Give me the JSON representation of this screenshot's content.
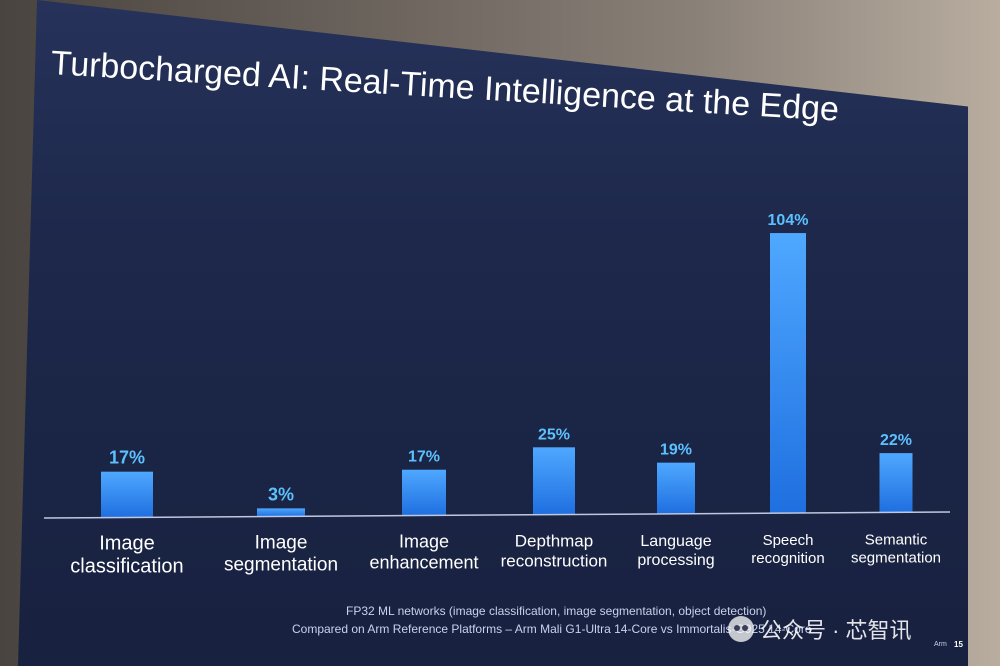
{
  "slide": {
    "title": "Turbocharged AI: Real-Time Intelligence at the Edge",
    "footnote_line1": "FP32 ML networks (image classification, image segmentation, object detection)",
    "footnote_line2": "Compared on Arm Reference Platforms – Arm Mali G1-Ultra 14-Core vs Immortalis-G925 14-Core",
    "brand": "Arm",
    "page_number": "15"
  },
  "watermark": {
    "text": "公众号 · 芯智讯",
    "icon": "wechat-icon"
  },
  "colors": {
    "background": "#1d284b",
    "bar_top": "#4fa8ff",
    "bar_bottom": "#1f6fe0",
    "value_label": "#5cc0ff",
    "category_label": "#ffffff",
    "baseline": "#c0c8e0"
  },
  "chart_data": {
    "type": "bar",
    "categories": [
      [
        "Image",
        "classification"
      ],
      [
        "Image",
        "segmentation"
      ],
      [
        "Image",
        "enhancement"
      ],
      [
        "Depthmap",
        "reconstruction"
      ],
      [
        "Language",
        "processing"
      ],
      [
        "Speech",
        "recognition"
      ],
      [
        "Semantic",
        "segmentation"
      ]
    ],
    "values": [
      17,
      3,
      17,
      25,
      19,
      104,
      22
    ],
    "value_labels": [
      "17%",
      "3%",
      "17%",
      "25%",
      "19%",
      "104%",
      "22%"
    ],
    "unit": "%",
    "ylim": [
      0,
      104
    ],
    "grid": false,
    "legend": "none"
  }
}
